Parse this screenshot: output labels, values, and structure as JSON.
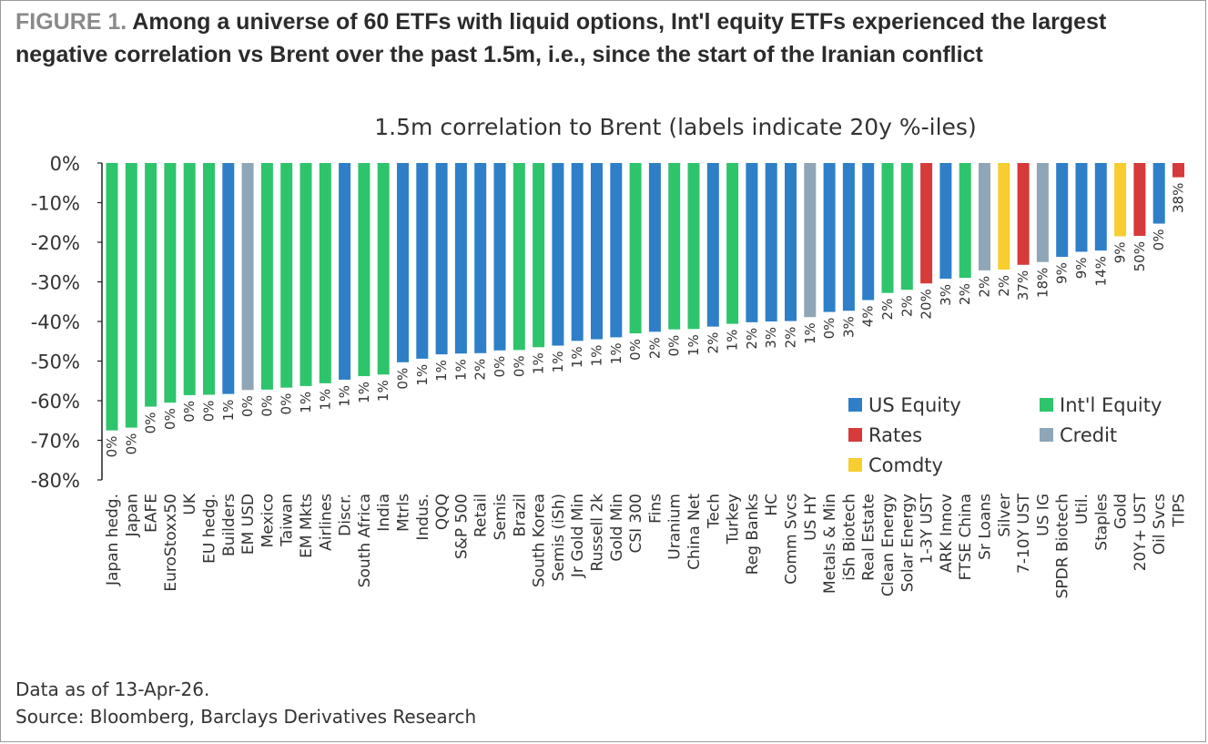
{
  "figure_label": "FIGURE 1.",
  "headline": "Among a universe of 60 ETFs with liquid options, Int'l equity ETFs experienced the largest negative correlation vs Brent over the past 1.5m, i.e., since the start of the Iranian conflict",
  "notes": {
    "data_as_of": "Data as of 13-Apr-26.",
    "source": "Source: Bloomberg, Barclays Derivatives Research"
  },
  "colors": {
    "US Equity": "#2e7fc7",
    "Int'l Equity": "#2ec46c",
    "Rates": "#d63a3a",
    "Credit": "#8fa6b8",
    "Comdty": "#f7cd30"
  },
  "chart_data": {
    "type": "bar",
    "title": "1.5m correlation to Brent (labels indicate 20y %-iles)",
    "xlabel": "",
    "ylabel": "",
    "ylim": [
      -80,
      0
    ],
    "y_ticks": [
      0,
      -10,
      -20,
      -30,
      -40,
      -50,
      -60,
      -70,
      -80
    ],
    "y_tick_labels": [
      "0%",
      "-10%",
      "-20%",
      "-30%",
      "-40%",
      "-50%",
      "-60%",
      "-70%",
      "-80%"
    ],
    "legend": [
      "US Equity",
      "Int'l Equity",
      "Rates",
      "Credit",
      "Comdty"
    ],
    "legend_position": "bottom-right",
    "categories": [
      "Japan hedg.",
      "Japan",
      "EAFE",
      "EuroStoxx50",
      "UK",
      "EU hedg.",
      "Builders",
      "EM USD",
      "Mexico",
      "Taiwan",
      "EM Mkts",
      "Airlines",
      "Discr.",
      "South Africa",
      "India",
      "Mtrls",
      "Indus.",
      "QQQ",
      "S&P 500",
      "Retail",
      "Semis",
      "Brazil",
      "South Korea",
      "Semis (iSh)",
      "Jr Gold Min",
      "Russell 2k",
      "Gold Min",
      "CSI 300",
      "Fins",
      "Uranium",
      "China Net",
      "Tech",
      "Turkey",
      "Reg Banks",
      "HC",
      "Comm Svcs",
      "US HY",
      "Metals & Min",
      "iSh Biotech",
      "Real Estate",
      "Clean Energy",
      "Solar Energy",
      "1-3Y UST",
      "ARK Innov",
      "FTSE China",
      "Sr Loans",
      "Silver",
      "7-10Y UST",
      "US IG",
      "SPDR Biotech",
      "Util.",
      "Staples",
      "Gold",
      "20Y+ UST",
      "Oil Svcs",
      "TIPS"
    ],
    "values": [
      -67.5,
      -66.8,
      -61.5,
      -60.5,
      -58.6,
      -58.5,
      -58.3,
      -57.3,
      -57.2,
      -56.7,
      -56.3,
      -55.6,
      -54.7,
      -53.8,
      -53.4,
      -50.3,
      -49.4,
      -48.3,
      -48.1,
      -48.0,
      -47.3,
      -47.2,
      -46.5,
      -46.1,
      -44.9,
      -44.5,
      -44.0,
      -43.0,
      -42.6,
      -42.0,
      -41.9,
      -41.3,
      -40.6,
      -40.2,
      -40.0,
      -39.9,
      -38.9,
      -37.6,
      -37.3,
      -34.6,
      -32.8,
      -32.0,
      -30.4,
      -29.2,
      -29.0,
      -27.1,
      -26.9,
      -25.7,
      -25.0,
      -23.7,
      -22.4,
      -22.1,
      -18.5,
      -18.4,
      -15.3,
      -3.6
    ],
    "percentile_labels": [
      "0%",
      "0%",
      "0%",
      "0%",
      "0%",
      "0%",
      "1%",
      "0%",
      "0%",
      "0%",
      "1%",
      "1%",
      "1%",
      "1%",
      "1%",
      "0%",
      "1%",
      "1%",
      "1%",
      "2%",
      "0%",
      "0%",
      "1%",
      "1%",
      "1%",
      "1%",
      "1%",
      "0%",
      "2%",
      "0%",
      "1%",
      "2%",
      "1%",
      "2%",
      "3%",
      "2%",
      "1%",
      "0%",
      "3%",
      "4%",
      "2%",
      "2%",
      "20%",
      "3%",
      "2%",
      "2%",
      "2%",
      "37%",
      "18%",
      "9%",
      "9%",
      "14%",
      "9%",
      "50%",
      "0%",
      "38%"
    ],
    "groups": [
      "Int'l Equity",
      "Int'l Equity",
      "Int'l Equity",
      "Int'l Equity",
      "Int'l Equity",
      "Int'l Equity",
      "US Equity",
      "Credit",
      "Int'l Equity",
      "Int'l Equity",
      "Int'l Equity",
      "Int'l Equity",
      "US Equity",
      "Int'l Equity",
      "Int'l Equity",
      "US Equity",
      "US Equity",
      "US Equity",
      "US Equity",
      "US Equity",
      "US Equity",
      "Int'l Equity",
      "Int'l Equity",
      "US Equity",
      "US Equity",
      "US Equity",
      "US Equity",
      "Int'l Equity",
      "US Equity",
      "Int'l Equity",
      "Int'l Equity",
      "US Equity",
      "Int'l Equity",
      "US Equity",
      "US Equity",
      "US Equity",
      "Credit",
      "US Equity",
      "US Equity",
      "US Equity",
      "Int'l Equity",
      "Int'l Equity",
      "Rates",
      "US Equity",
      "Int'l Equity",
      "Credit",
      "Comdty",
      "Rates",
      "Credit",
      "US Equity",
      "US Equity",
      "US Equity",
      "Comdty",
      "Rates",
      "US Equity",
      "Rates"
    ]
  }
}
